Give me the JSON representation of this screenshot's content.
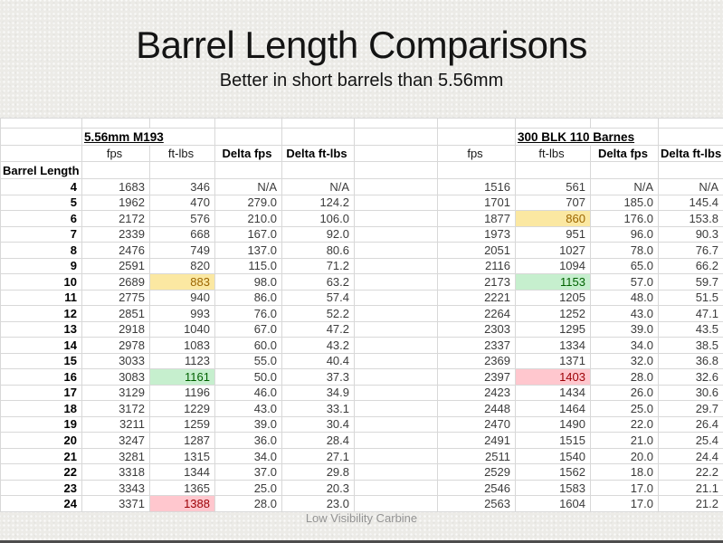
{
  "slide": {
    "title": "Barrel Length Comparisons",
    "subtitle": "Better in short barrels than 5.56mm",
    "footer": "Low Visibility Carbine"
  },
  "table": {
    "row_header_label": "Barrel Length",
    "col_keys": [
      "fps",
      "ftlbs",
      "deltafps",
      "deltaftlbs"
    ],
    "left": {
      "label": "5.56mm M193",
      "columns": [
        "fps",
        "ft-lbs",
        "Delta fps",
        "Delta ft-lbs"
      ]
    },
    "right": {
      "label": "300 BLK 110 Barnes",
      "columns": [
        "fps",
        "ft-lbs",
        "Delta fps",
        "Delta ft-lbs"
      ]
    },
    "rows": [
      {
        "len": "4",
        "left": [
          "1683",
          "346",
          "N/A",
          "N/A"
        ],
        "right": [
          "1516",
          "561",
          "N/A",
          "N/A"
        ]
      },
      {
        "len": "5",
        "left": [
          "1962",
          "470",
          "279.0",
          "124.2"
        ],
        "right": [
          "1701",
          "707",
          "185.0",
          "145.4"
        ]
      },
      {
        "len": "6",
        "left": [
          "2172",
          "576",
          "210.0",
          "106.0"
        ],
        "right": [
          "1877",
          "860",
          "176.0",
          "153.8"
        ],
        "rh": "yellow"
      },
      {
        "len": "7",
        "left": [
          "2339",
          "668",
          "167.0",
          "92.0"
        ],
        "right": [
          "1973",
          "951",
          "96.0",
          "90.3"
        ]
      },
      {
        "len": "8",
        "left": [
          "2476",
          "749",
          "137.0",
          "80.6"
        ],
        "right": [
          "2051",
          "1027",
          "78.0",
          "76.7"
        ]
      },
      {
        "len": "9",
        "left": [
          "2591",
          "820",
          "115.0",
          "71.2"
        ],
        "right": [
          "2116",
          "1094",
          "65.0",
          "66.2"
        ]
      },
      {
        "len": "10",
        "left": [
          "2689",
          "883",
          "98.0",
          "63.2"
        ],
        "right": [
          "2173",
          "1153",
          "57.0",
          "59.7"
        ],
        "lh": "yellow",
        "rh": "green"
      },
      {
        "len": "11",
        "left": [
          "2775",
          "940",
          "86.0",
          "57.4"
        ],
        "right": [
          "2221",
          "1205",
          "48.0",
          "51.5"
        ]
      },
      {
        "len": "12",
        "left": [
          "2851",
          "993",
          "76.0",
          "52.2"
        ],
        "right": [
          "2264",
          "1252",
          "43.0",
          "47.1"
        ]
      },
      {
        "len": "13",
        "left": [
          "2918",
          "1040",
          "67.0",
          "47.2"
        ],
        "right": [
          "2303",
          "1295",
          "39.0",
          "43.5"
        ]
      },
      {
        "len": "14",
        "left": [
          "2978",
          "1083",
          "60.0",
          "43.2"
        ],
        "right": [
          "2337",
          "1334",
          "34.0",
          "38.5"
        ]
      },
      {
        "len": "15",
        "left": [
          "3033",
          "1123",
          "55.0",
          "40.4"
        ],
        "right": [
          "2369",
          "1371",
          "32.0",
          "36.8"
        ]
      },
      {
        "len": "16",
        "left": [
          "3083",
          "1161",
          "50.0",
          "37.3"
        ],
        "right": [
          "2397",
          "1403",
          "28.0",
          "32.6"
        ],
        "lh": "green",
        "rh": "red"
      },
      {
        "len": "17",
        "left": [
          "3129",
          "1196",
          "46.0",
          "34.9"
        ],
        "right": [
          "2423",
          "1434",
          "26.0",
          "30.6"
        ]
      },
      {
        "len": "18",
        "left": [
          "3172",
          "1229",
          "43.0",
          "33.1"
        ],
        "right": [
          "2448",
          "1464",
          "25.0",
          "29.7"
        ]
      },
      {
        "len": "19",
        "left": [
          "3211",
          "1259",
          "39.0",
          "30.4"
        ],
        "right": [
          "2470",
          "1490",
          "22.0",
          "26.4"
        ]
      },
      {
        "len": "20",
        "left": [
          "3247",
          "1287",
          "36.0",
          "28.4"
        ],
        "right": [
          "2491",
          "1515",
          "21.0",
          "25.4"
        ]
      },
      {
        "len": "21",
        "left": [
          "3281",
          "1315",
          "34.0",
          "27.1"
        ],
        "right": [
          "2511",
          "1540",
          "20.0",
          "24.4"
        ]
      },
      {
        "len": "22",
        "left": [
          "3318",
          "1344",
          "37.0",
          "29.8"
        ],
        "right": [
          "2529",
          "1562",
          "18.0",
          "22.2"
        ]
      },
      {
        "len": "23",
        "left": [
          "3343",
          "1365",
          "25.0",
          "20.3"
        ],
        "right": [
          "2546",
          "1583",
          "17.0",
          "21.1"
        ]
      },
      {
        "len": "24",
        "left": [
          "3371",
          "1388",
          "28.0",
          "23.0"
        ],
        "right": [
          "2563",
          "1604",
          "17.0",
          "21.2"
        ],
        "lh": "red"
      }
    ]
  },
  "colors": {
    "highlight_yellow_bg": "#FBE8A2",
    "highlight_yellow_text": "#9C6500",
    "highlight_green_bg": "#C6EFCE",
    "highlight_green_text": "#006100",
    "highlight_red_bg": "#FFC7CE",
    "highlight_red_text": "#9C0006"
  }
}
